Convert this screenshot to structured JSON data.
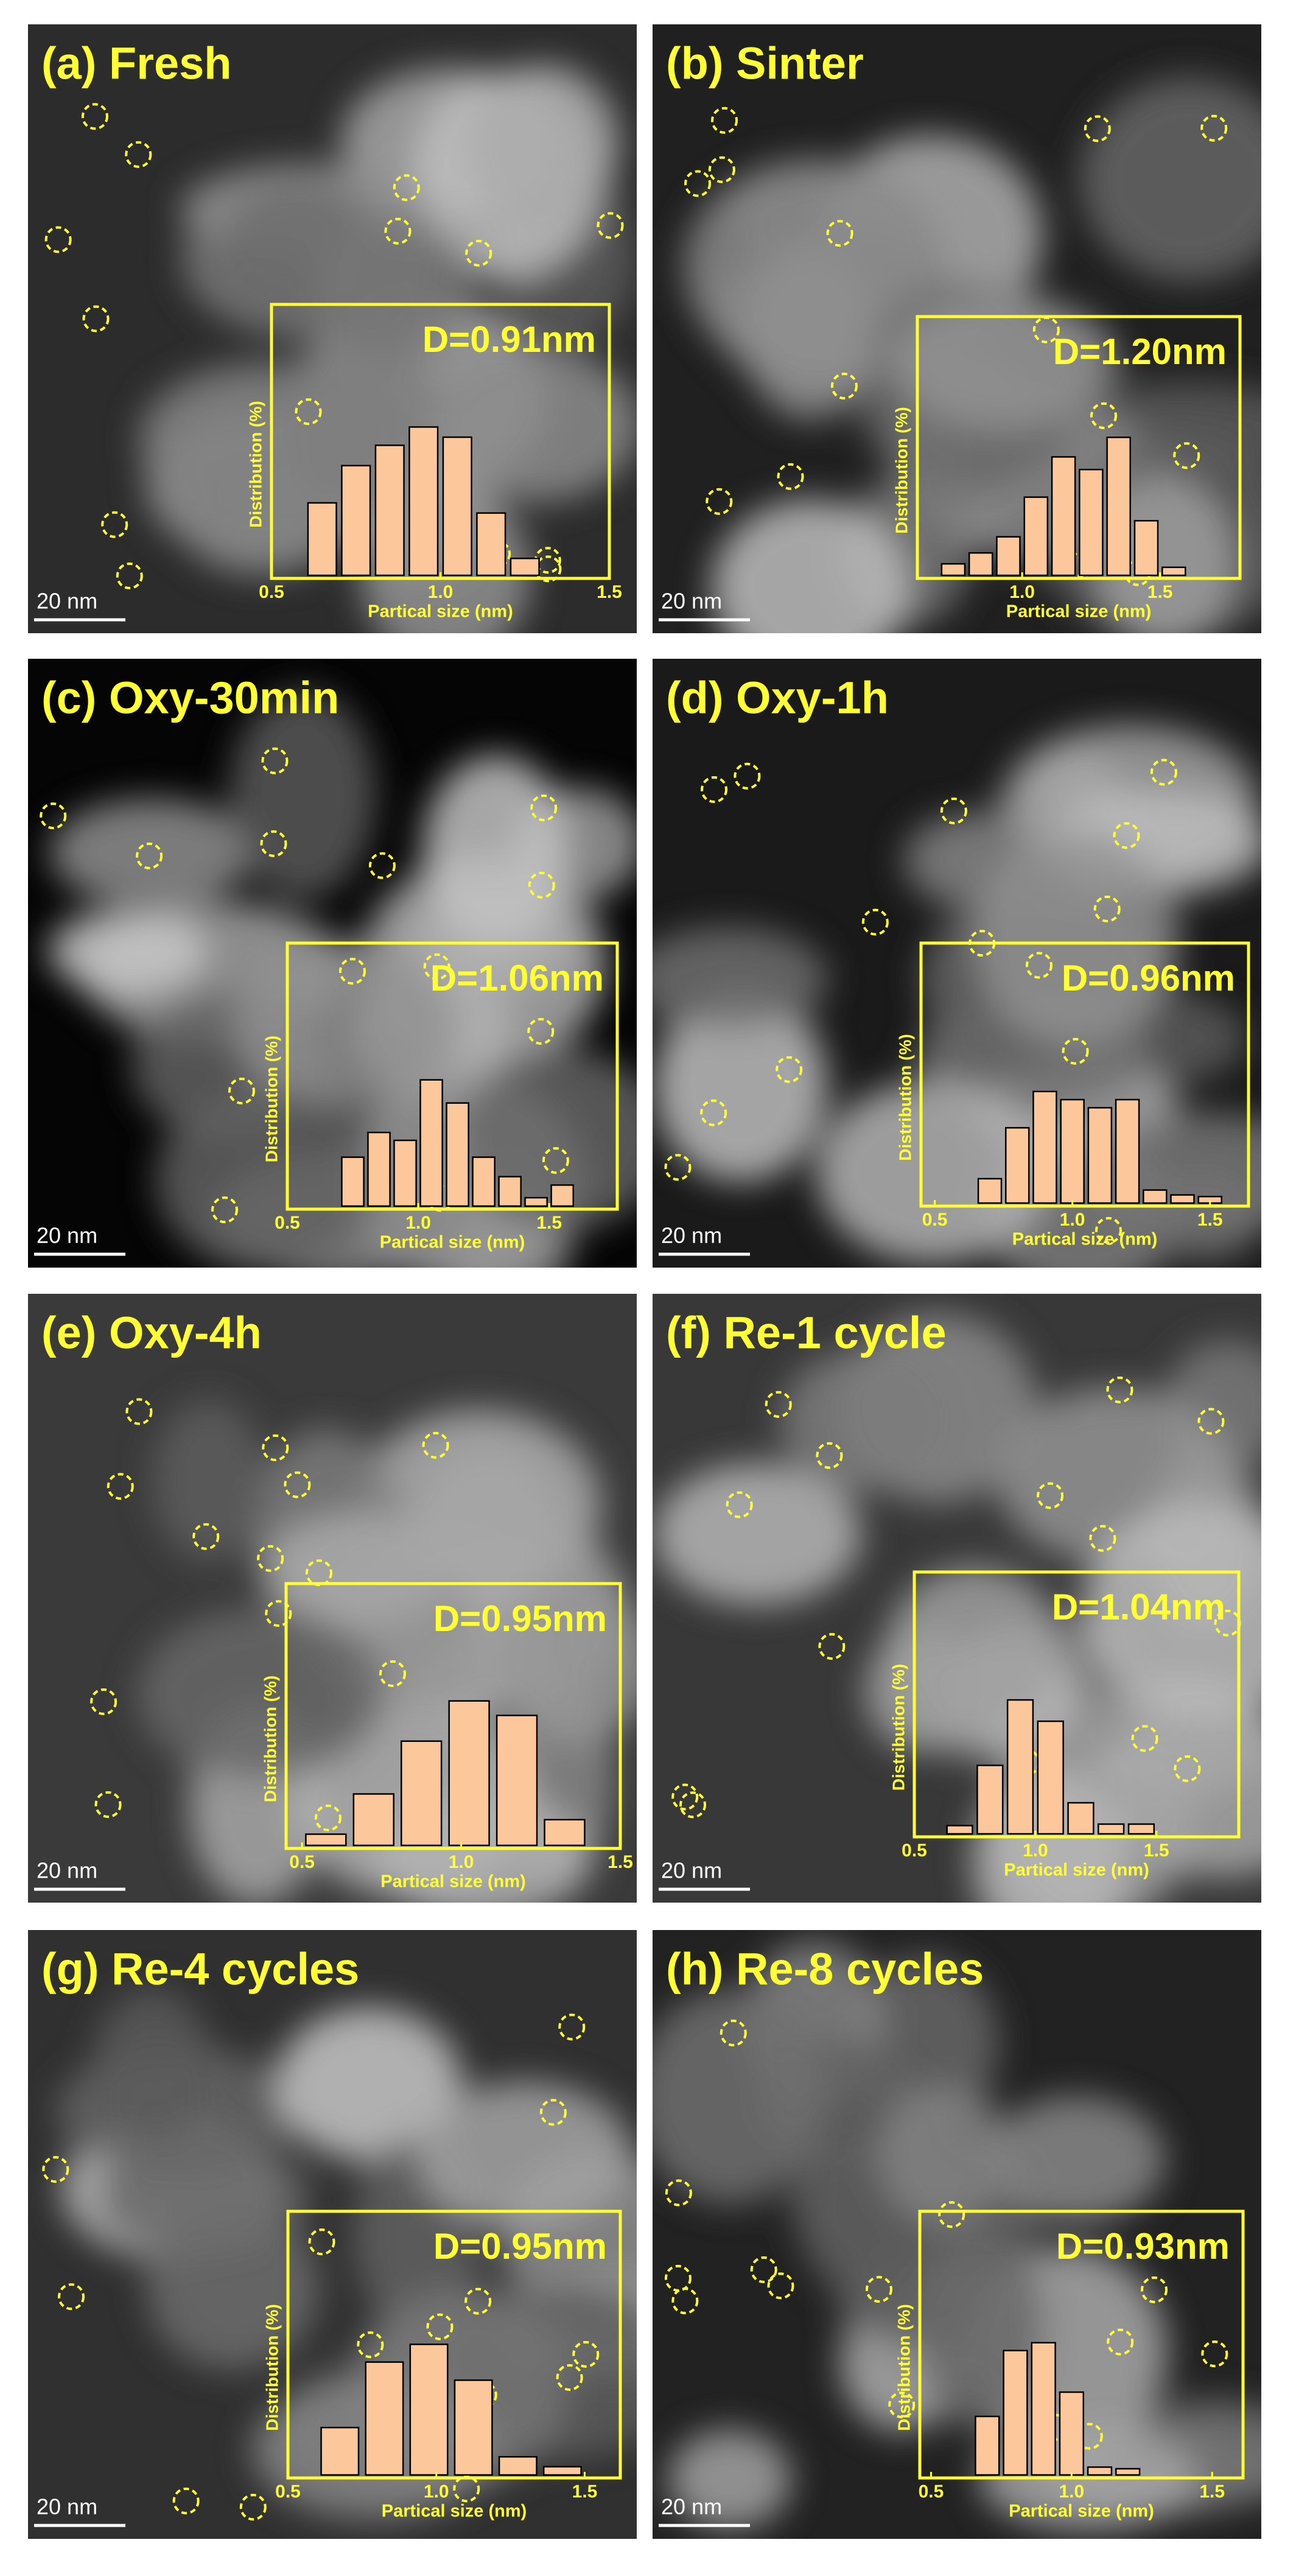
{
  "chart_data": [
    {
      "type": "histogram",
      "title": "(a) Fresh",
      "annotation": "D=0.91nm",
      "scale_bar": "20 nm",
      "xlabel": "Partical size (nm)",
      "ylabel": "Distribution (%)",
      "color": "#fcc79a",
      "bins": [
        0.6,
        0.7,
        0.8,
        0.9,
        1.0,
        1.1,
        1.2,
        1.3
      ],
      "values": [
        10.7,
        16.2,
        19.2,
        21.9,
        20.4,
        9.2,
        2.5
      ],
      "xlim": [
        0.5,
        1.5
      ],
      "xticks": [
        0.5,
        {
          "value": 1,
          "label": "1.0"
        },
        1.5
      ],
      "ylim": [
        0,
        40
      ]
    },
    {
      "type": "histogram",
      "title": "(b) Sinter",
      "annotation": "D=1.20nm",
      "scale_bar": "20 nm",
      "xlabel": "Partical size (nm)",
      "ylabel": "Distribution (%)",
      "color": "#fcc79a",
      "bins": [
        0.7,
        0.8,
        0.9,
        1.0,
        1.1,
        1.2,
        1.3,
        1.4,
        1.5,
        1.6
      ],
      "values": [
        2,
        3.9,
        6.7,
        13.6,
        20.6,
        18.4,
        24,
        9.5,
        1.4
      ],
      "xlim": [
        0.62,
        1.79
      ],
      "xticks": [
        {
          "value": 1,
          "label": "1.0"
        },
        1.5
      ],
      "ylim": [
        0,
        45
      ]
    },
    {
      "type": "histogram",
      "title": "(c) Oxy-30min",
      "annotation": "D=1.06nm",
      "scale_bar": "20 nm",
      "xlabel": "Partical size (nm)",
      "ylabel": "Distribution (%)",
      "color": "#fcc79a",
      "bins": [
        0.7,
        0.8,
        0.9,
        1.0,
        1.1,
        1.2,
        1.3,
        1.4,
        1.5,
        1.6
      ],
      "values": [
        9.3,
        14,
        12.5,
        24,
        19.6,
        9.3,
        5.6,
        1.6,
        4
      ],
      "xlim": [
        0.5,
        1.76
      ],
      "xticks": [
        0.5,
        {
          "value": 1,
          "label": "1.0"
        },
        1.5
      ],
      "ylim": [
        0,
        50
      ]
    },
    {
      "type": "histogram",
      "title": "(d) Oxy-1h",
      "annotation": "D=0.96nm",
      "scale_bar": "20 nm",
      "xlabel": "Partical size (nm)",
      "ylabel": "Distribution (%)",
      "color": "#fcc79a",
      "bins": [
        0.65,
        0.75,
        0.85,
        0.95,
        1.05,
        1.15,
        1.25,
        1.35,
        1.45,
        1.55
      ],
      "values": [
        4.5,
        13.9,
        20.6,
        19.1,
        17.6,
        19.1,
        2.4,
        1.5,
        1.2
      ],
      "xlim": [
        0.45,
        1.64
      ],
      "xticks": [
        0.5,
        {
          "value": 1,
          "label": "1.0"
        },
        1.5
      ],
      "ylim": [
        0,
        48
      ]
    },
    {
      "type": "histogram",
      "title": "(e) Oxy-4h",
      "annotation": "D=0.95nm",
      "scale_bar": "20 nm",
      "xlabel": "Partical size (nm)",
      "ylabel": "Distribution (%)",
      "color": "#fcc79a",
      "bins": [
        0.5,
        0.65,
        0.8,
        0.95,
        1.1,
        1.25,
        1.4
      ],
      "values": [
        2.4,
        11,
        22.3,
        30.9,
        27.8,
        5.5
      ],
      "xlim": [
        0.45,
        1.5
      ],
      "xticks": [
        0.5,
        {
          "value": 1,
          "label": "1.0"
        },
        1.5
      ],
      "ylim": [
        0,
        56
      ]
    },
    {
      "type": "histogram",
      "title": "(f) Re-1 cycle",
      "annotation": "D=1.04nm",
      "scale_bar": "20 nm",
      "xlabel": "Partical size (nm)",
      "ylabel": "Distribution (%)",
      "color": "#fcc79a",
      "bins": [
        0.625,
        0.75,
        0.875,
        1.0,
        1.125,
        1.25,
        1.375,
        1.5
      ],
      "values": [
        2.2,
        18.3,
        35.8,
        30.1,
        8.3,
        2.6,
        2.6
      ],
      "xlim": [
        0.5,
        1.84
      ],
      "xticks": [
        0.5,
        {
          "value": 1,
          "label": "1.0"
        },
        1.5
      ],
      "ylim": [
        0,
        70
      ]
    },
    {
      "type": "histogram",
      "title": "(g) Re-4 cycles",
      "annotation": "D=0.95nm",
      "scale_bar": "20 nm",
      "xlabel": "Partical size (nm)",
      "ylabel": "Distribution (%)",
      "color": "#fcc79a",
      "bins": [
        0.6,
        0.75,
        0.9,
        1.05,
        1.2,
        1.35,
        1.5
      ],
      "values": [
        11.5,
        27.4,
        31.7,
        23,
        4.4,
        2
      ],
      "xlim": [
        0.5,
        1.62
      ],
      "xticks": [
        0.5,
        {
          "value": 1,
          "label": "1.0"
        },
        1.5
      ],
      "ylim": [
        0,
        64
      ]
    },
    {
      "type": "histogram",
      "title": "(h) Re-8 cycles",
      "annotation": "D=0.93nm",
      "scale_bar": "20 nm",
      "xlabel": "Partical size (nm)",
      "ylabel": "Distribution (%)",
      "color": "#fcc79a",
      "bins": [
        0.65,
        0.75,
        0.85,
        0.95,
        1.05,
        1.15,
        1.25
      ],
      "values": [
        14.2,
        30.2,
        32.1,
        20.1,
        1.9,
        1.5
      ],
      "xlim": [
        0.46,
        1.61
      ],
      "xticks": [
        0.5,
        {
          "value": 1,
          "label": "1.0"
        },
        1.5
      ],
      "ylim": [
        0,
        64
      ]
    }
  ]
}
